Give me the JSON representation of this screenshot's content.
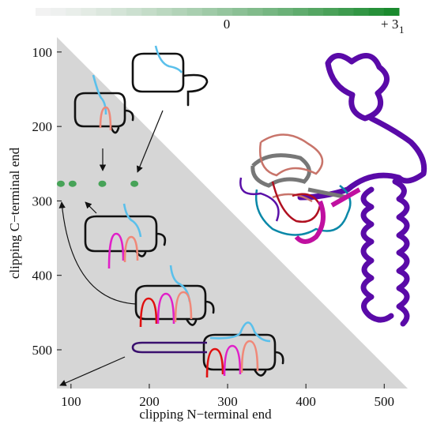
{
  "chart_data": {
    "type": "scatter",
    "colorbar": {
      "low_label": "0",
      "high_label": "+ 3",
      "high_subscript": "1",
      "low_color": "#f2f2f2",
      "high_color": "#1a8a2e"
    },
    "x": [
      87,
      102,
      140,
      181
    ],
    "values": [
      277,
      277,
      277,
      277
    ],
    "color": "#2e9a42",
    "xlabel": "clipping N−terminal end",
    "ylabel": "clipping C−terminal end",
    "xlim": [
      82,
      530
    ],
    "ylim": [
      80,
      552
    ],
    "xticks": [
      100,
      200,
      300,
      400,
      500
    ],
    "yticks": [
      100,
      200,
      300,
      400,
      500
    ]
  }
}
